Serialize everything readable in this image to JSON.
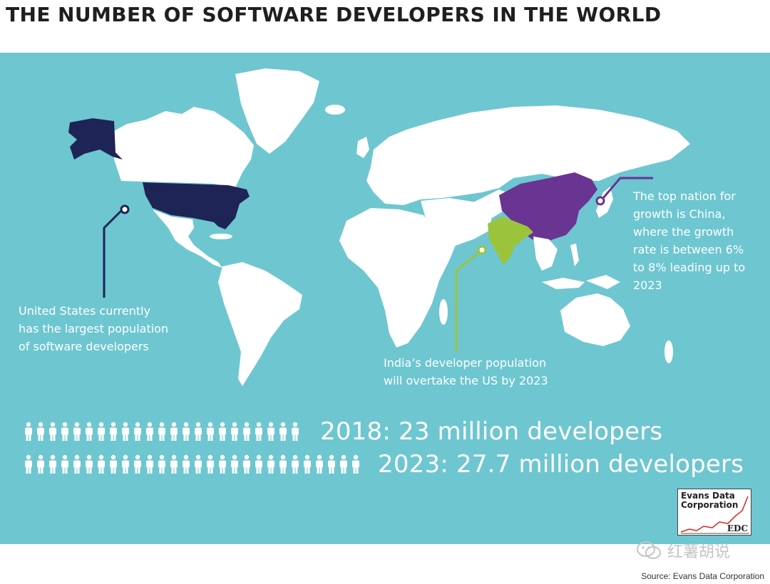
{
  "title": "THE NUMBER OF SOFTWARE DEVELOPERS IN THE WORLD",
  "colors": {
    "ocean": "#6ec6d0",
    "land": "#ffffff",
    "us": "#1e2455",
    "china": "#6a3493",
    "india": "#9cc33c"
  },
  "callouts": {
    "us": [
      "United States currently",
      "has the largest population",
      "of software developers"
    ],
    "india": [
      "India’s developer population",
      "will overtake the US by 2023"
    ],
    "china": [
      "The top nation for",
      "growth is China,",
      "where the growth",
      "rate is between 6%",
      "to 8% leading up to",
      "2023"
    ]
  },
  "stats": [
    {
      "label": "2018: 23 million developers",
      "icon_count": 23
    },
    {
      "label": "2023: 27.7 million developers",
      "icon_count": 28
    }
  ],
  "logo": {
    "line1": "Evans Data",
    "line2": "Corporation",
    "abbr": "EDC"
  },
  "watermark": "红薯胡说",
  "source": "Source: Evans Data Corporation"
}
